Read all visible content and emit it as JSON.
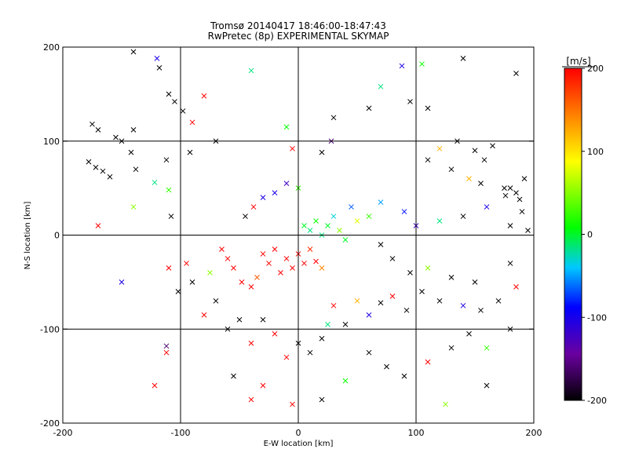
{
  "chart_data": [
    {
      "type": "scatter",
      "title": "Tromsø 20140417 18:46:00-18:47:43",
      "subtitle": "RwPretec (8p) EXPERIMENTAL SKYMAP",
      "xlabel": "E-W location [km]",
      "ylabel": "N-S location [km]",
      "xlim": [
        -200,
        200
      ],
      "ylim": [
        -200,
        200
      ],
      "x_ticks": [
        "-200",
        "-100",
        "0",
        "100",
        "200"
      ],
      "y_ticks": [
        "-200",
        "-100",
        "0",
        "100",
        "200"
      ],
      "grid": true,
      "marker_types": [
        "dot",
        "x"
      ],
      "color_encoding": "Doppler velocity [m/s]",
      "points": [
        {
          "x": -175,
          "y": 118,
          "v": -200,
          "m": "x"
        },
        {
          "x": -170,
          "y": 112,
          "v": -200,
          "m": "x"
        },
        {
          "x": -178,
          "y": 78,
          "v": -200,
          "m": "x"
        },
        {
          "x": -172,
          "y": 72,
          "v": -200,
          "m": "x"
        },
        {
          "x": -166,
          "y": 68,
          "v": -200,
          "m": "x"
        },
        {
          "x": -155,
          "y": 104,
          "v": -200,
          "m": "x"
        },
        {
          "x": -150,
          "y": 100,
          "v": -200,
          "m": "x"
        },
        {
          "x": -142,
          "y": 88,
          "v": -200,
          "m": "x"
        },
        {
          "x": -138,
          "y": 70,
          "v": -200,
          "m": "x"
        },
        {
          "x": -160,
          "y": 62,
          "v": -200,
          "m": "x"
        },
        {
          "x": -140,
          "y": 112,
          "v": -200,
          "m": "x"
        },
        {
          "x": -118,
          "y": 178,
          "v": -200,
          "m": "x"
        },
        {
          "x": -110,
          "y": 150,
          "v": -200,
          "m": "x"
        },
        {
          "x": -105,
          "y": 142,
          "v": -200,
          "m": "x"
        },
        {
          "x": -98,
          "y": 132,
          "v": -200,
          "m": "x"
        },
        {
          "x": -120,
          "y": 188,
          "v": -100,
          "m": "x"
        },
        {
          "x": -122,
          "y": 56,
          "v": 0,
          "m": "x"
        },
        {
          "x": -110,
          "y": 48,
          "v": 40,
          "m": "x"
        },
        {
          "x": -108,
          "y": 20,
          "v": -200,
          "m": "x"
        },
        {
          "x": -140,
          "y": 30,
          "v": 60,
          "m": "x"
        },
        {
          "x": -170,
          "y": 10,
          "v": 200,
          "m": "x"
        },
        {
          "x": -150,
          "y": -50,
          "v": -100,
          "m": "x"
        },
        {
          "x": -110,
          "y": -35,
          "v": 200,
          "m": "x"
        },
        {
          "x": -102,
          "y": -60,
          "v": -200,
          "m": "x"
        },
        {
          "x": -112,
          "y": -118,
          "v": -160,
          "m": "x"
        },
        {
          "x": -112,
          "y": -125,
          "v": 200,
          "m": "x"
        },
        {
          "x": -122,
          "y": -160,
          "v": 200,
          "m": "x"
        },
        {
          "x": -140,
          "y": 195,
          "v": -200,
          "m": "x"
        },
        {
          "x": -60,
          "y": -25,
          "v": 200,
          "m": "x"
        },
        {
          "x": -55,
          "y": -35,
          "v": 200,
          "m": "x"
        },
        {
          "x": -48,
          "y": -50,
          "v": 200,
          "m": "x"
        },
        {
          "x": -40,
          "y": -55,
          "v": 200,
          "m": "x"
        },
        {
          "x": -35,
          "y": -45,
          "v": 160,
          "m": "x"
        },
        {
          "x": -30,
          "y": -20,
          "v": 200,
          "m": "x"
        },
        {
          "x": -25,
          "y": -30,
          "v": 200,
          "m": "x"
        },
        {
          "x": -20,
          "y": -15,
          "v": 200,
          "m": "x"
        },
        {
          "x": -15,
          "y": -40,
          "v": 200,
          "m": "x"
        },
        {
          "x": -10,
          "y": -25,
          "v": 200,
          "m": "x"
        },
        {
          "x": -5,
          "y": -35,
          "v": 200,
          "m": "x"
        },
        {
          "x": 0,
          "y": -20,
          "v": 200,
          "m": "x"
        },
        {
          "x": 5,
          "y": -30,
          "v": 200,
          "m": "x"
        },
        {
          "x": 10,
          "y": -15,
          "v": 180,
          "m": "x"
        },
        {
          "x": 15,
          "y": -28,
          "v": 200,
          "m": "x"
        },
        {
          "x": 20,
          "y": -35,
          "v": 140,
          "m": "x"
        },
        {
          "x": -45,
          "y": 20,
          "v": -200,
          "m": "x"
        },
        {
          "x": -38,
          "y": 30,
          "v": 200,
          "m": "x"
        },
        {
          "x": -30,
          "y": 40,
          "v": -100,
          "m": "x"
        },
        {
          "x": -20,
          "y": 45,
          "v": -100,
          "m": "x"
        },
        {
          "x": -10,
          "y": 55,
          "v": -120,
          "m": "x"
        },
        {
          "x": 0,
          "y": 50,
          "v": 40,
          "m": "x"
        },
        {
          "x": 5,
          "y": 10,
          "v": 20,
          "m": "x"
        },
        {
          "x": 10,
          "y": 5,
          "v": 0,
          "m": "x"
        },
        {
          "x": 15,
          "y": 15,
          "v": 30,
          "m": "x"
        },
        {
          "x": 20,
          "y": 0,
          "v": 0,
          "m": "x"
        },
        {
          "x": 25,
          "y": 10,
          "v": 20,
          "m": "x"
        },
        {
          "x": 30,
          "y": 20,
          "v": -20,
          "m": "x"
        },
        {
          "x": 35,
          "y": 5,
          "v": 60,
          "m": "x"
        },
        {
          "x": 40,
          "y": -5,
          "v": 20,
          "m": "x"
        },
        {
          "x": 45,
          "y": 30,
          "v": -60,
          "m": "x"
        },
        {
          "x": 50,
          "y": 15,
          "v": 80,
          "m": "x"
        },
        {
          "x": -5,
          "y": 92,
          "v": 200,
          "m": "x"
        },
        {
          "x": 20,
          "y": 88,
          "v": -200,
          "m": "x"
        },
        {
          "x": 28,
          "y": 100,
          "v": -160,
          "m": "x"
        },
        {
          "x": -10,
          "y": 115,
          "v": 30,
          "m": "x"
        },
        {
          "x": 30,
          "y": 125,
          "v": -200,
          "m": "x"
        },
        {
          "x": 60,
          "y": 135,
          "v": -200,
          "m": "x"
        },
        {
          "x": 70,
          "y": 158,
          "v": 0,
          "m": "x"
        },
        {
          "x": 88,
          "y": 180,
          "v": -100,
          "m": "x"
        },
        {
          "x": 95,
          "y": 142,
          "v": -200,
          "m": "x"
        },
        {
          "x": 105,
          "y": 182,
          "v": 30,
          "m": "x"
        },
        {
          "x": 110,
          "y": 135,
          "v": -200,
          "m": "x"
        },
        {
          "x": 140,
          "y": 188,
          "v": -200,
          "m": "x"
        },
        {
          "x": 185,
          "y": 172,
          "v": -200,
          "m": "x"
        },
        {
          "x": 150,
          "y": 90,
          "v": -200,
          "m": "x"
        },
        {
          "x": 158,
          "y": 80,
          "v": -200,
          "m": "x"
        },
        {
          "x": 165,
          "y": 95,
          "v": -200,
          "m": "x"
        },
        {
          "x": 135,
          "y": 100,
          "v": -200,
          "m": "x"
        },
        {
          "x": 120,
          "y": 92,
          "v": 120,
          "m": "x"
        },
        {
          "x": 130,
          "y": 70,
          "v": -200,
          "m": "x"
        },
        {
          "x": 110,
          "y": 80,
          "v": -200,
          "m": "x"
        },
        {
          "x": 145,
          "y": 60,
          "v": 120,
          "m": "x"
        },
        {
          "x": 155,
          "y": 55,
          "v": -200,
          "m": "x"
        },
        {
          "x": 175,
          "y": 50,
          "v": -200,
          "m": "x"
        },
        {
          "x": 185,
          "y": 45,
          "v": -200,
          "m": "x"
        },
        {
          "x": 190,
          "y": 25,
          "v": -200,
          "m": "x"
        },
        {
          "x": 180,
          "y": 10,
          "v": -200,
          "m": "x"
        },
        {
          "x": 195,
          "y": 5,
          "v": -200,
          "m": "x"
        },
        {
          "x": 160,
          "y": 30,
          "v": -100,
          "m": "x"
        },
        {
          "x": 140,
          "y": 20,
          "v": -200,
          "m": "x"
        },
        {
          "x": 120,
          "y": 15,
          "v": 0,
          "m": "x"
        },
        {
          "x": 100,
          "y": 10,
          "v": -120,
          "m": "x"
        },
        {
          "x": 90,
          "y": 25,
          "v": -80,
          "m": "x"
        },
        {
          "x": 70,
          "y": 35,
          "v": -40,
          "m": "x"
        },
        {
          "x": 60,
          "y": 20,
          "v": 40,
          "m": "x"
        },
        {
          "x": 70,
          "y": -10,
          "v": -200,
          "m": "x"
        },
        {
          "x": 80,
          "y": -25,
          "v": -200,
          "m": "x"
        },
        {
          "x": 95,
          "y": -40,
          "v": -200,
          "m": "x"
        },
        {
          "x": 110,
          "y": -35,
          "v": 60,
          "m": "x"
        },
        {
          "x": 130,
          "y": -45,
          "v": -200,
          "m": "x"
        },
        {
          "x": 150,
          "y": -50,
          "v": -200,
          "m": "x"
        },
        {
          "x": 180,
          "y": -30,
          "v": -200,
          "m": "x"
        },
        {
          "x": 185,
          "y": -55,
          "v": 200,
          "m": "x"
        },
        {
          "x": 170,
          "y": -70,
          "v": -200,
          "m": "x"
        },
        {
          "x": 155,
          "y": -80,
          "v": -200,
          "m": "x"
        },
        {
          "x": 140,
          "y": -75,
          "v": -100,
          "m": "x"
        },
        {
          "x": 120,
          "y": -70,
          "v": -200,
          "m": "x"
        },
        {
          "x": 105,
          "y": -60,
          "v": -200,
          "m": "x"
        },
        {
          "x": 92,
          "y": -80,
          "v": -200,
          "m": "x"
        },
        {
          "x": 80,
          "y": -65,
          "v": 200,
          "m": "x"
        },
        {
          "x": 70,
          "y": -72,
          "v": -200,
          "m": "x"
        },
        {
          "x": 60,
          "y": -85,
          "v": -100,
          "m": "x"
        },
        {
          "x": 50,
          "y": -70,
          "v": 120,
          "m": "x"
        },
        {
          "x": 40,
          "y": -95,
          "v": -200,
          "m": "x"
        },
        {
          "x": 30,
          "y": -75,
          "v": 200,
          "m": "x"
        },
        {
          "x": 25,
          "y": -95,
          "v": 0,
          "m": "x"
        },
        {
          "x": 20,
          "y": -110,
          "v": -200,
          "m": "x"
        },
        {
          "x": 10,
          "y": -125,
          "v": -200,
          "m": "x"
        },
        {
          "x": 0,
          "y": -115,
          "v": -200,
          "m": "x"
        },
        {
          "x": -10,
          "y": -130,
          "v": 200,
          "m": "x"
        },
        {
          "x": -20,
          "y": -105,
          "v": 200,
          "m": "x"
        },
        {
          "x": -30,
          "y": -90,
          "v": -200,
          "m": "x"
        },
        {
          "x": -40,
          "y": -115,
          "v": 200,
          "m": "x"
        },
        {
          "x": -50,
          "y": -90,
          "v": -200,
          "m": "x"
        },
        {
          "x": -60,
          "y": -100,
          "v": -200,
          "m": "x"
        },
        {
          "x": -70,
          "y": -70,
          "v": -200,
          "m": "x"
        },
        {
          "x": -80,
          "y": -85,
          "v": 200,
          "m": "x"
        },
        {
          "x": -90,
          "y": -50,
          "v": -200,
          "m": "x"
        },
        {
          "x": -95,
          "y": -30,
          "v": 200,
          "m": "x"
        },
        {
          "x": -75,
          "y": -40,
          "v": 60,
          "m": "x"
        },
        {
          "x": -65,
          "y": -15,
          "v": 200,
          "m": "x"
        },
        {
          "x": 60,
          "y": -125,
          "v": -200,
          "m": "x"
        },
        {
          "x": 75,
          "y": -140,
          "v": -200,
          "m": "x"
        },
        {
          "x": 90,
          "y": -150,
          "v": -200,
          "m": "x"
        },
        {
          "x": 110,
          "y": -135,
          "v": 200,
          "m": "x"
        },
        {
          "x": 130,
          "y": -120,
          "v": -200,
          "m": "x"
        },
        {
          "x": 145,
          "y": -105,
          "v": -200,
          "m": "x"
        },
        {
          "x": 160,
          "y": -120,
          "v": 40,
          "m": "x"
        },
        {
          "x": 180,
          "y": -100,
          "v": -200,
          "m": "x"
        },
        {
          "x": 40,
          "y": -155,
          "v": 30,
          "m": "x"
        },
        {
          "x": 20,
          "y": -175,
          "v": -200,
          "m": "x"
        },
        {
          "x": -5,
          "y": -180,
          "v": 200,
          "m": "x"
        },
        {
          "x": -40,
          "y": -175,
          "v": 200,
          "m": "x"
        },
        {
          "x": -55,
          "y": -150,
          "v": -200,
          "m": "x"
        },
        {
          "x": -30,
          "y": -160,
          "v": 200,
          "m": "x"
        },
        {
          "x": 125,
          "y": -180,
          "v": 60,
          "m": "x"
        },
        {
          "x": 160,
          "y": -160,
          "v": -200,
          "m": "x"
        },
        {
          "x": -80,
          "y": 148,
          "v": 200,
          "m": "x"
        },
        {
          "x": -90,
          "y": 120,
          "v": 200,
          "m": "x"
        },
        {
          "x": -40,
          "y": 175,
          "v": 0,
          "m": "x"
        },
        {
          "x": -70,
          "y": 100,
          "v": -200,
          "m": "x"
        },
        {
          "x": -92,
          "y": 88,
          "v": -200,
          "m": "x"
        },
        {
          "x": -112,
          "y": 80,
          "v": -200,
          "m": "x"
        },
        {
          "x": 180,
          "y": 50,
          "v": -200,
          "m": "x"
        },
        {
          "x": 188,
          "y": 38,
          "v": -200,
          "m": "x"
        },
        {
          "x": 192,
          "y": 60,
          "v": -200,
          "m": "x"
        },
        {
          "x": 176,
          "y": 42,
          "v": -200,
          "m": "x"
        }
      ]
    },
    {
      "type": "colorbar",
      "label": "[m/s]",
      "range": [
        -200,
        200
      ],
      "ticks": [
        "200",
        "100",
        "0",
        "-100",
        "-200"
      ],
      "colormap": [
        "#000000",
        "#6a00a0",
        "#0000ff",
        "#00c8ff",
        "#00ff00",
        "#ffff00",
        "#ff8000",
        "#ff0000"
      ]
    }
  ]
}
